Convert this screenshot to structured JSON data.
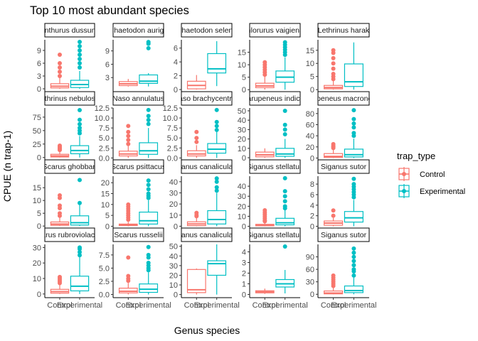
{
  "chart_data": {
    "type": "boxplot",
    "title": "Top 10 most abundant species",
    "xlabel": "Genus species",
    "ylabel": "CPUE (n trap-1)",
    "categories": [
      "Control",
      "Experimental"
    ],
    "legend": {
      "title": "trap_type",
      "position": "right",
      "entries": [
        {
          "label": "Control",
          "color": "#F8766D"
        },
        {
          "label": "Experimental",
          "color": "#00BFC4"
        }
      ]
    },
    "grid": false,
    "facet_layout": {
      "rows": 4,
      "cols": 5
    },
    "panels": [
      {
        "strip": "Acanthurus dussumieri",
        "ylim": [
          -0.5,
          11.5
        ],
        "yticks": [
          0,
          3,
          6,
          9
        ],
        "boxes": [
          {
            "q1": 0.2,
            "med": 0.6,
            "q3": 1.2,
            "lo": 0,
            "hi": 2.6,
            "outliers": [
              3,
              4,
              5,
              6,
              8
            ]
          },
          {
            "q1": 0.3,
            "med": 1.0,
            "q3": 2.0,
            "lo": 0,
            "hi": 4.2,
            "outliers": [
              5,
              6,
              7,
              8,
              9,
              10,
              11
            ]
          }
        ]
      },
      {
        "strip": "Chaetodon auriga",
        "ylim": [
          0,
          11.5
        ],
        "yticks": [
          3,
          6,
          9
        ],
        "boxes": [
          {
            "q1": 1.2,
            "med": 1.6,
            "q3": 2.1,
            "lo": 1.0,
            "hi": 2.7,
            "outliers": []
          },
          {
            "q1": 1.7,
            "med": 2.2,
            "q3": 3.6,
            "lo": 1.0,
            "hi": 4.0,
            "outliers": [
              9.6,
              10.6,
              11
            ]
          }
        ]
      },
      {
        "strip": "Chaetodon selene",
        "ylim": [
          -0.2,
          7.2
        ],
        "yticks": [
          0,
          2,
          4,
          6
        ],
        "boxes": [
          {
            "q1": 0.1,
            "med": 0.6,
            "q3": 1.2,
            "lo": 0,
            "hi": 2.1,
            "outliers": []
          },
          {
            "q1": 2.4,
            "med": 3.0,
            "q3": 5.2,
            "lo": 0.5,
            "hi": 7.0,
            "outliers": []
          }
        ]
      },
      {
        "strip": "Chlorurus vaigiensis",
        "ylim": [
          -0.5,
          20
        ],
        "yticks": [
          0,
          5,
          10,
          15
        ],
        "boxes": [
          {
            "q1": 0.8,
            "med": 1.5,
            "q3": 2.6,
            "lo": 0,
            "hi": 5.2,
            "outliers": [
              6,
              7,
              8,
              9,
              10,
              11
            ]
          },
          {
            "q1": 3.0,
            "med": 5.0,
            "q3": 7.5,
            "lo": 0,
            "hi": 13,
            "outliers": [
              14,
              15,
              16,
              17,
              18,
              19
            ]
          }
        ]
      },
      {
        "strip": "Lethrinus harak",
        "ylim": [
          -0.5,
          19
        ],
        "yticks": [
          0,
          5,
          10,
          15
        ],
        "boxes": [
          {
            "q1": 0.3,
            "med": 0.8,
            "q3": 1.6,
            "lo": 0,
            "hi": 3.5,
            "outliers": [
              4,
              5,
              6,
              8,
              10,
              12,
              14,
              15
            ]
          },
          {
            "q1": 1.2,
            "med": 3.0,
            "q3": 9.8,
            "lo": 0,
            "hi": 18,
            "outliers": []
          }
        ]
      },
      {
        "strip": "Lethrinus nebulosus",
        "ylim": [
          -3,
          92
        ],
        "yticks": [
          0,
          25,
          50,
          75
        ],
        "boxes": [
          {
            "q1": 1,
            "med": 3,
            "q3": 6,
            "lo": 0,
            "hi": 12,
            "outliers": [
              14,
              16,
              18,
              20,
              22
            ]
          },
          {
            "q1": 7,
            "med": 13,
            "q3": 22,
            "lo": 0,
            "hi": 40,
            "outliers": [
              45,
              50,
              55,
              62,
              70,
              88
            ]
          }
        ]
      },
      {
        "strip": "Naso annulatus",
        "ylim": [
          -0.3,
          12.5
        ],
        "yticks": [
          0,
          2.5,
          5,
          7.5,
          10,
          12.5
        ],
        "ytick_labels": [
          "0.0",
          "2.5",
          "5.0",
          "7.5",
          "10.0",
          "12.5"
        ],
        "boxes": [
          {
            "q1": 0.5,
            "med": 1.0,
            "q3": 1.7,
            "lo": 0,
            "hi": 3.0,
            "outliers": [
              3.5,
              4.5,
              5.5,
              6.5,
              8
            ]
          },
          {
            "q1": 0.9,
            "med": 1.8,
            "q3": 3.8,
            "lo": 0,
            "hi": 7.5,
            "outliers": [
              8.5,
              9.5,
              10.5,
              12
            ]
          }
        ]
      },
      {
        "strip": "Naso brachycentron",
        "ylim": [
          -0.3,
          12.5
        ],
        "yticks": [
          0,
          2.5,
          5,
          7.5,
          10,
          12.5
        ],
        "ytick_labels": [
          "0.0",
          "2.5",
          "5.0",
          "7.5",
          "10.0",
          "12.5"
        ],
        "boxes": [
          {
            "q1": 0.5,
            "med": 1.0,
            "q3": 1.8,
            "lo": 0,
            "hi": 3.2,
            "outliers": [
              4,
              5,
              6.5
            ]
          },
          {
            "q1": 1.2,
            "med": 2.2,
            "q3": 3.6,
            "lo": 0,
            "hi": 6.5,
            "outliers": [
              7,
              8,
              9,
              12
            ]
          }
        ]
      },
      {
        "strip": "Parupeneus indicus",
        "ylim": [
          -1.5,
          53
        ],
        "yticks": [
          0,
          10,
          20,
          30,
          40,
          50
        ],
        "boxes": [
          {
            "q1": 1,
            "med": 3,
            "q3": 6,
            "lo": 0,
            "hi": 10,
            "outliers": []
          },
          {
            "q1": 1.5,
            "med": 4,
            "q3": 10,
            "lo": 0,
            "hi": 20,
            "outliers": [
              25,
              30,
              35,
              50
            ]
          }
        ]
      },
      {
        "strip": "Parupeneus macronemus",
        "ylim": [
          -2,
          90
        ],
        "yticks": [
          0,
          20,
          40,
          60,
          80
        ],
        "boxes": [
          {
            "q1": 1,
            "med": 3,
            "q3": 8,
            "lo": 0,
            "hi": 16,
            "outliers": [
              18,
              20,
              22,
              25
            ]
          },
          {
            "q1": 2,
            "med": 6,
            "q3": 16,
            "lo": 0,
            "hi": 35,
            "outliers": [
              40,
              45,
              55,
              62,
              70,
              86
            ]
          }
        ]
      },
      {
        "strip": "Scarus ghobban",
        "ylim": [
          -0.5,
          19.5
        ],
        "yticks": [
          0,
          5,
          10,
          15
        ],
        "boxes": [
          {
            "q1": 0.3,
            "med": 0.8,
            "q3": 1.6,
            "lo": 0,
            "hi": 3.5,
            "outliers": [
              4,
              5,
              7,
              8,
              11,
              12
            ]
          },
          {
            "q1": 0.4,
            "med": 1.3,
            "q3": 4.0,
            "lo": 0,
            "hi": 8.5,
            "outliers": [
              9,
              18
            ]
          }
        ]
      },
      {
        "strip": "Scarus psittacus",
        "ylim": [
          -0.5,
          23
        ],
        "yticks": [
          0,
          5,
          10,
          15,
          20
        ],
        "boxes": [
          {
            "q1": 0.3,
            "med": 0.6,
            "q3": 1.0,
            "lo": 0,
            "hi": 2.0,
            "outliers": [
              3,
              4,
              5,
              6,
              7,
              8,
              9,
              10
            ]
          },
          {
            "q1": 1.0,
            "med": 2.5,
            "q3": 6.5,
            "lo": 0,
            "hi": 12,
            "outliers": [
              13,
              14,
              15,
              17,
              19,
              21
            ]
          }
        ]
      },
      {
        "strip": "Siganus canaliculatus",
        "ylim": [
          -1,
          45
        ],
        "yticks": [
          0,
          10,
          20,
          30,
          40
        ],
        "boxes": [
          {
            "q1": 0.5,
            "med": 2,
            "q3": 4,
            "lo": 0,
            "hi": 8,
            "outliers": [
              9,
              10,
              12
            ]
          },
          {
            "q1": 2,
            "med": 6,
            "q3": 14,
            "lo": 0,
            "hi": 30,
            "outliers": [
              32,
              35,
              40,
              43
            ]
          }
        ]
      },
      {
        "strip": "Siganus stellatus",
        "ylim": [
          -1,
          50
        ],
        "yticks": [
          0,
          10,
          20,
          30,
          40
        ],
        "boxes": [
          {
            "q1": 0.5,
            "med": 1,
            "q3": 2,
            "lo": 0,
            "hi": 4,
            "outliers": [
              5,
              6,
              8,
              10,
              12,
              14,
              16
            ]
          },
          {
            "q1": 1.5,
            "med": 3.5,
            "q3": 8,
            "lo": 0,
            "hi": 17,
            "outliers": [
              18,
              20,
              25,
              30,
              35,
              48
            ]
          }
        ]
      },
      {
        "strip": "Siganus sutor",
        "ylim": [
          -0.2,
          9.5
        ],
        "yticks": [
          0,
          2,
          4,
          6,
          8
        ],
        "boxes": [
          {
            "q1": 0.2,
            "med": 0.6,
            "q3": 1.0,
            "lo": 0,
            "hi": 1.6,
            "outliers": [
              2,
              3
            ]
          },
          {
            "q1": 0.8,
            "med": 1.6,
            "q3": 2.8,
            "lo": 0,
            "hi": 5.0,
            "outliers": [
              5.5,
              6,
              6.5,
              7,
              7.5,
              8,
              9
            ]
          }
        ]
      },
      {
        "strip": "Scarus rubroviolaceus",
        "ylim": [
          -1,
          32
        ],
        "yticks": [
          0,
          10,
          20,
          30
        ],
        "boxes": [
          {
            "q1": 0.5,
            "med": 1.5,
            "q3": 3,
            "lo": 0,
            "hi": 6,
            "outliers": [
              7,
              8,
              9,
              10,
              11
            ]
          },
          {
            "q1": 2,
            "med": 5,
            "q3": 11.5,
            "lo": 0,
            "hi": 24,
            "outliers": [
              25,
              27,
              29,
              30
            ]
          }
        ]
      },
      {
        "strip": "Scarus russelii",
        "ylim": [
          -0.2,
          9.5
        ],
        "yticks": [
          0,
          2.5,
          5,
          7.5
        ],
        "ytick_labels": [
          "0.0",
          "2.5",
          "5.0",
          "7.5"
        ],
        "boxes": [
          {
            "q1": 0.3,
            "med": 0.6,
            "q3": 1.2,
            "lo": 0,
            "hi": 2.2,
            "outliers": [
              2.6,
              3,
              3.5,
              7
            ]
          },
          {
            "q1": 0.4,
            "med": 1.0,
            "q3": 2.0,
            "lo": 0,
            "hi": 4.2,
            "outliers": [
              4.6,
              5,
              5.5,
              6,
              7,
              7.5,
              9
            ]
          }
        ]
      },
      {
        "strip": "Siganus canaliculatus",
        "ylim": [
          -1,
          52
        ],
        "yticks": [
          0,
          10,
          20,
          30,
          40,
          50
        ],
        "boxes": [
          {
            "q1": 2,
            "med": 5,
            "q3": 26,
            "lo": 0,
            "hi": 27,
            "outliers": []
          },
          {
            "q1": 20,
            "med": 32,
            "q3": 35,
            "lo": 0,
            "hi": 52,
            "outliers": []
          }
        ]
      },
      {
        "strip": "Siganus stellatus",
        "ylim": [
          -0.1,
          4.7
        ],
        "yticks": [
          0,
          1,
          2,
          3,
          4
        ],
        "boxes": [
          {
            "q1": 0.15,
            "med": 0.25,
            "q3": 0.35,
            "lo": 0.05,
            "hi": 0.55,
            "outliers": []
          },
          {
            "q1": 0.7,
            "med": 1.0,
            "q3": 1.4,
            "lo": 0.1,
            "hi": 2.3,
            "outliers": [
              4.5
            ]
          }
        ]
      },
      {
        "strip": "Siganus sutor",
        "ylim": [
          -3,
          120
        ],
        "yticks": [
          0,
          30,
          60,
          90
        ],
        "boxes": [
          {
            "q1": 1,
            "med": 3,
            "q3": 8,
            "lo": 0,
            "hi": 18,
            "outliers": [
              20,
              25,
              30,
              35,
              40,
              45
            ]
          },
          {
            "q1": 4,
            "med": 9,
            "q3": 20,
            "lo": 0,
            "hi": 40,
            "outliers": [
              45,
              55,
              60,
              70,
              80,
              90,
              100,
              110
            ]
          }
        ]
      }
    ]
  }
}
